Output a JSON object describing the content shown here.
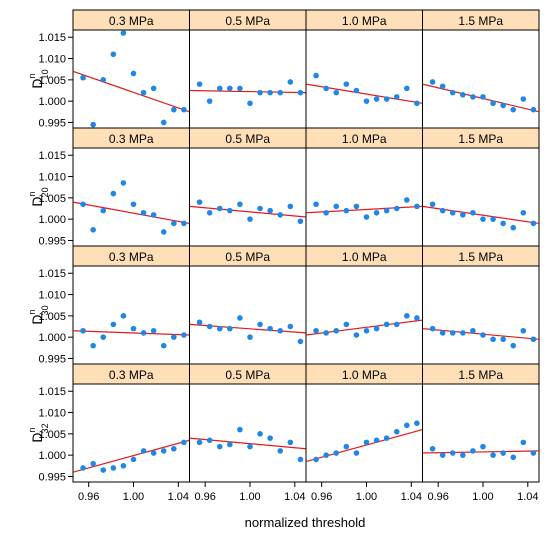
{
  "chart_data": {
    "type": "scatter",
    "x_label": "normalized threshold",
    "x": [
      0.955,
      0.964,
      0.973,
      0.982,
      0.991,
      1.0,
      1.009,
      1.018,
      1.027,
      1.036,
      1.045
    ],
    "xlim": [
      0.946,
      1.05
    ],
    "xticks": [
      0.96,
      {
        "value": 1.0,
        "label": "1.00"
      },
      1.04
    ],
    "ylim": [
      0.9937,
      1.0167
    ],
    "yticks": [
      0.995,
      {
        "value": 1.0,
        "label": "1.000"
      },
      1.005,
      {
        "value": 1.01,
        "label": "1.010"
      },
      1.015
    ],
    "point_color": "#1f88e5",
    "line_color": "#e31a1c",
    "strip_color": "#ffdfb8",
    "strips": [
      "0.3 MPa",
      "0.5 MPa",
      "1.0 MPa",
      "1.5 MPa"
    ],
    "rows": [
      {
        "label": "D",
        "sup": "n",
        "sub": "10"
      },
      {
        "label": "D",
        "sup": "n",
        "sub": "20"
      },
      {
        "label": "D",
        "sup": "n",
        "sub": "30"
      },
      {
        "label": "D",
        "sup": "n",
        "sub": "32"
      }
    ],
    "panels": [
      [
        {
          "values": [
            1.0055,
            0.9945,
            1.005,
            1.011,
            1.016,
            1.0065,
            1.002,
            1.003,
            0.995,
            0.998,
            0.998
          ],
          "fit": [
            1.007,
            0.9975
          ]
        },
        {
          "values": [
            1.004,
            1.0,
            1.003,
            1.003,
            1.003,
            0.9995,
            1.002,
            1.002,
            1.002,
            1.0045,
            1.002
          ],
          "fit": [
            1.0025,
            1.002
          ]
        },
        {
          "values": [
            1.006,
            1.003,
            1.002,
            1.004,
            1.0025,
            1.0,
            1.0005,
            1.0005,
            1.001,
            1.003,
            0.9995
          ],
          "fit": [
            1.004,
            0.9995
          ]
        },
        {
          "values": [
            1.0045,
            1.0035,
            1.002,
            1.0015,
            1.001,
            1.001,
            0.9995,
            0.999,
            0.998,
            1.0005,
            0.998
          ],
          "fit": [
            1.004,
            0.9975
          ]
        }
      ],
      [
        {
          "values": [
            1.0035,
            0.9975,
            1.002,
            1.006,
            1.0085,
            1.0035,
            1.0015,
            1.001,
            0.997,
            0.999,
            0.999
          ],
          "fit": [
            1.004,
            0.999
          ]
        },
        {
          "values": [
            1.004,
            1.0015,
            1.0025,
            1.002,
            1.0035,
            1.0,
            1.0025,
            1.002,
            1.001,
            1.003,
            0.9995
          ],
          "fit": [
            1.003,
            1.0005
          ]
        },
        {
          "values": [
            1.0035,
            1.0015,
            1.003,
            1.002,
            1.003,
            1.0005,
            1.0015,
            1.002,
            1.0025,
            1.0045,
            1.003
          ],
          "fit": [
            1.0015,
            1.003
          ]
        },
        {
          "values": [
            1.0035,
            1.002,
            1.0015,
            1.001,
            1.0015,
            1.0,
            1.0,
            0.999,
            0.998,
            1.0015,
            0.999
          ],
          "fit": [
            1.003,
            0.999
          ]
        }
      ],
      [
        {
          "values": [
            1.0015,
            0.998,
            1.0,
            1.003,
            1.005,
            1.002,
            1.001,
            1.0015,
            0.998,
            1.0,
            1.0005
          ],
          "fit": [
            1.0015,
            1.0005
          ]
        },
        {
          "values": [
            1.0035,
            1.0025,
            1.002,
            1.002,
            1.0045,
            1.0,
            1.003,
            1.002,
            1.0015,
            1.0025,
            0.999
          ],
          "fit": [
            1.003,
            1.001
          ]
        },
        {
          "values": [
            1.0015,
            1.001,
            1.0015,
            1.003,
            1.0005,
            1.0015,
            1.002,
            1.003,
            1.003,
            1.005,
            1.0045
          ],
          "fit": [
            1.0005,
            1.004
          ]
        },
        {
          "values": [
            1.002,
            1.001,
            1.001,
            1.001,
            1.0015,
            1.0005,
            0.9995,
            0.9995,
            0.998,
            1.0015,
            0.9995
          ],
          "fit": [
            1.002,
            0.9995
          ]
        }
      ],
      [
        {
          "values": [
            0.997,
            0.998,
            0.9965,
            0.997,
            0.9975,
            0.999,
            1.001,
            1.0005,
            1.001,
            1.0015,
            1.003
          ],
          "fit": [
            0.996,
            1.0035
          ]
        },
        {
          "values": [
            1.003,
            1.0035,
            1.002,
            1.0025,
            1.006,
            1.002,
            1.005,
            1.004,
            1.001,
            1.003,
            0.999
          ],
          "fit": [
            1.004,
            1.0015
          ]
        },
        {
          "values": [
            0.999,
            1.0,
            1.0005,
            1.002,
            1.0005,
            1.003,
            1.0035,
            1.004,
            1.0055,
            1.007,
            1.0075
          ],
          "fit": [
            0.9985,
            1.006
          ]
        },
        {
          "values": [
            1.0015,
            1.0,
            1.0005,
            1.0,
            1.001,
            1.002,
            1.0,
            1.0005,
            0.9995,
            1.003,
            1.0005
          ],
          "fit": [
            1.0005,
            1.001
          ]
        }
      ]
    ]
  }
}
